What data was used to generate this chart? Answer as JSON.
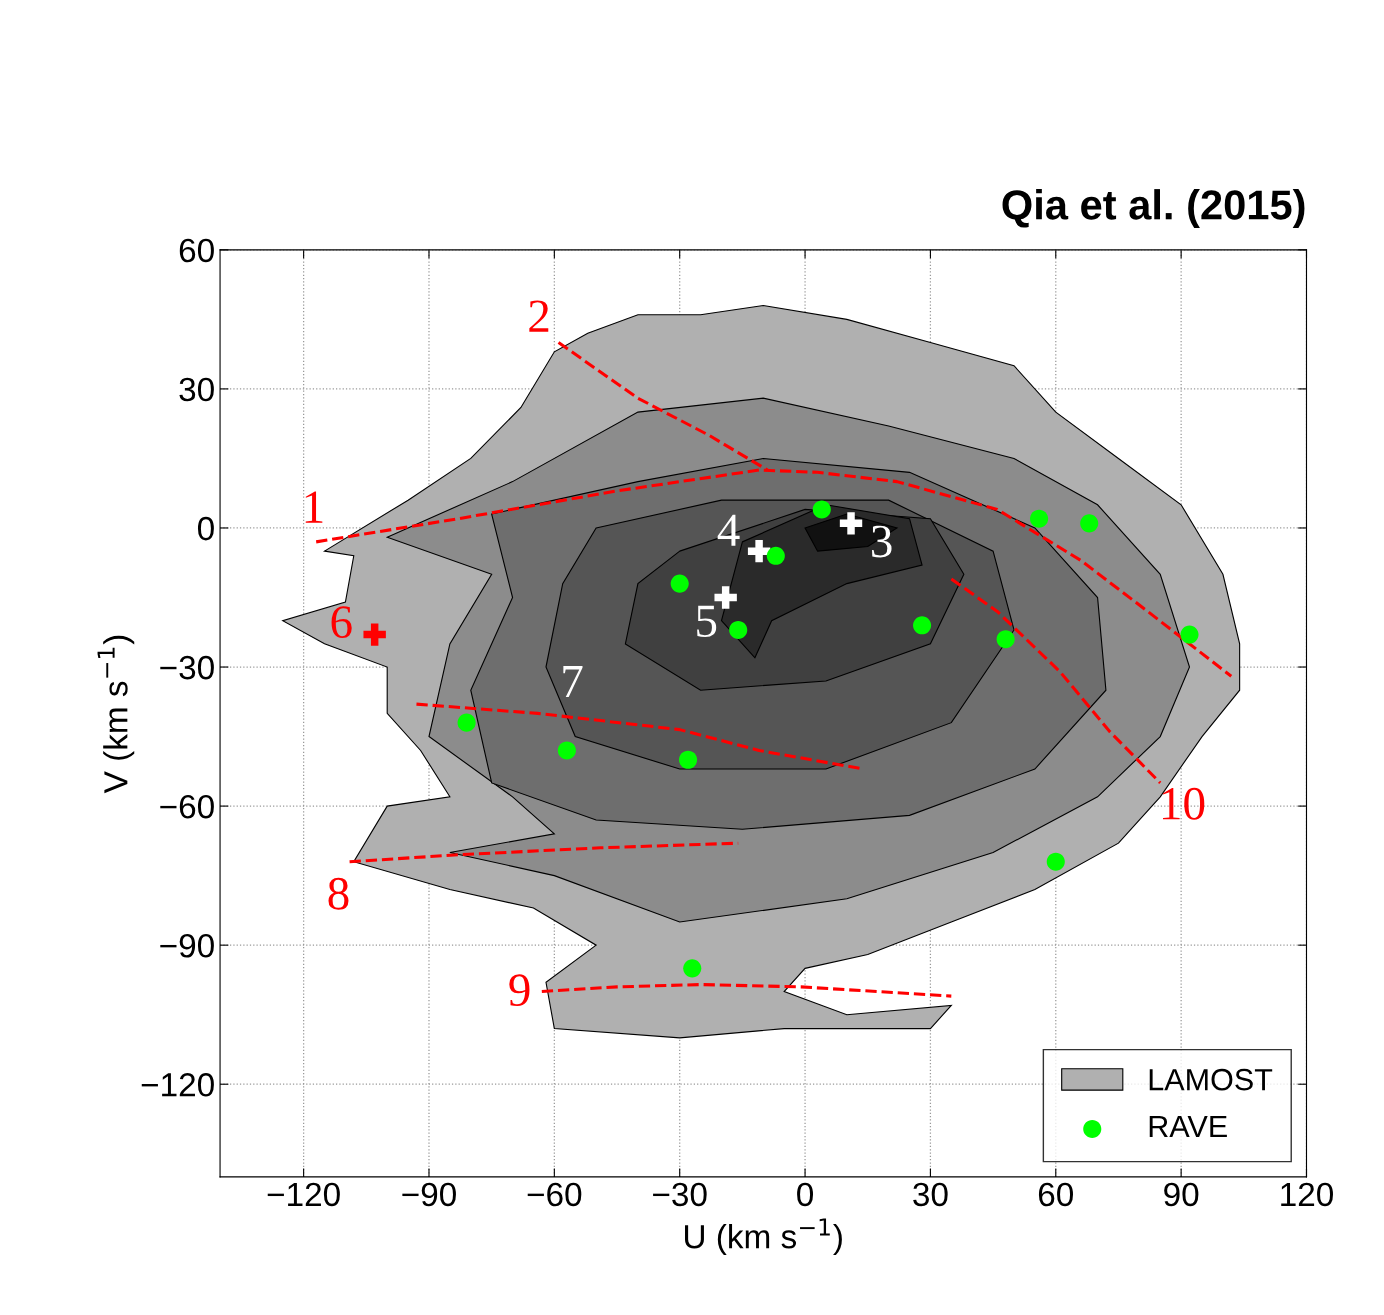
{
  "chart_data": {
    "type": "scatter",
    "title": "Qia et al. (2015)",
    "xlabel": "U (km s$^{−1}$)",
    "ylabel": "V (km s$^{−1}$)",
    "xlim": [
      -140,
      120
    ],
    "xticks": [
      {
        "value": -120,
        "label": "−120"
      },
      {
        "value": -90,
        "label": "−90"
      },
      {
        "value": -60,
        "label": "−60"
      },
      {
        "value": -30,
        "label": "−30"
      },
      0,
      30,
      60,
      90,
      120
    ],
    "ylim": [
      -140,
      60
    ],
    "yticks": [
      {
        "value": -120,
        "label": "−120"
      },
      {
        "value": -90,
        "label": "−90"
      },
      {
        "value": -60,
        "label": "−60"
      },
      {
        "value": -30,
        "label": "−30"
      },
      0,
      30,
      60
    ],
    "grid": true,
    "legend": "bottom right",
    "series": [
      {
        "type": "area",
        "name": "LAMOST",
        "color": "#b0b0b0",
        "x": [
          -115,
          -95,
          -80,
          -68,
          -60,
          -52,
          -40,
          -25,
          -10,
          10,
          30,
          50,
          60,
          75,
          90,
          100,
          104,
          104,
          95,
          85,
          75,
          55,
          35,
          15,
          0,
          -5,
          10,
          35,
          30,
          -5,
          -30,
          -60,
          -62,
          -50,
          -65,
          -85,
          -108,
          -100,
          -85,
          -92,
          -100,
          -100,
          -115,
          -125,
          -110,
          -108
        ],
        "values": [
          -5,
          6,
          15,
          26,
          38,
          42,
          46,
          46,
          48,
          45,
          40,
          35,
          25,
          15,
          5,
          -10,
          -25,
          -35,
          -45,
          -58,
          -68,
          -78,
          -85,
          -92,
          -95,
          -100,
          -105,
          -103,
          -108,
          -108,
          -110,
          -108,
          -98,
          -90,
          -82,
          -78,
          -72,
          -60,
          -58,
          -48,
          -40,
          -30,
          -25,
          -20,
          -16,
          -6
        ]
      },
      {
        "type": "area",
        "color": "#8c8c8c",
        "x": [
          -100,
          -70,
          -40,
          -10,
          20,
          50,
          70,
          85,
          92,
          85,
          70,
          45,
          10,
          -30,
          -60,
          -85,
          -60,
          -70,
          -90,
          -85,
          -75
        ],
        "values": [
          -2,
          10,
          25,
          28,
          22,
          15,
          5,
          -10,
          -30,
          -45,
          -58,
          -70,
          -80,
          -85,
          -75,
          -70,
          -66,
          -58,
          -45,
          -25,
          -10
        ]
      },
      {
        "type": "area",
        "color": "#6e6e6e",
        "x": [
          -75,
          -40,
          -10,
          25,
          55,
          70,
          72,
          55,
          25,
          -15,
          -50,
          -75,
          -80,
          -70
        ],
        "values": [
          3,
          10,
          15,
          12,
          0,
          -15,
          -35,
          -52,
          -62,
          -65,
          -63,
          -55,
          -35,
          -15
        ]
      },
      {
        "type": "area",
        "color": "#555555",
        "x": [
          -50,
          -20,
          20,
          45,
          50,
          35,
          5,
          -30,
          -55,
          -62,
          -58
        ],
        "values": [
          0,
          6,
          6,
          -5,
          -22,
          -42,
          -52,
          -52,
          -45,
          -30,
          -12
        ]
      },
      {
        "type": "area",
        "color": "#404040",
        "x": [
          -30,
          0,
          30,
          38,
          30,
          5,
          -25,
          -43,
          -40
        ],
        "values": [
          -5,
          4,
          2,
          -10,
          -25,
          -33,
          -35,
          -25,
          -12
        ]
      },
      {
        "type": "area",
        "color": "#2a2a2a",
        "x": [
          -15,
          5,
          25,
          28,
          10,
          -8,
          -12,
          -20
        ],
        "values": [
          -3,
          5,
          2,
          -8,
          -12,
          -20,
          -28,
          -20
        ]
      },
      {
        "type": "area",
        "color": "#111111",
        "x": [
          0,
          10,
          22,
          15,
          3
        ],
        "values": [
          0,
          3,
          0,
          -4,
          -5
        ]
      },
      {
        "type": "line",
        "name": "1",
        "color": "#ff0000",
        "line_style": "dashed",
        "marker": "none",
        "x": [
          -117,
          -83,
          -45,
          -11,
          3,
          22,
          46,
          66,
          82,
          102
        ],
        "values": [
          -3,
          2,
          8,
          12.5,
          12,
          10,
          4,
          -7,
          -18,
          -32
        ]
      },
      {
        "type": "line",
        "name": "2",
        "color": "#ff0000",
        "line_style": "dashed",
        "marker": "none",
        "x": [
          -59,
          -40,
          -23,
          -9
        ],
        "values": [
          40,
          28,
          20,
          12.5
        ]
      },
      {
        "type": "line",
        "name": "10",
        "color": "#ff0000",
        "line_style": "dashed",
        "marker": "none",
        "x": [
          35,
          46,
          61,
          73,
          85
        ],
        "values": [
          -11,
          -18,
          -31,
          -44,
          -55
        ]
      },
      {
        "type": "line",
        "color": "#ff0000",
        "line_style": "dashed",
        "marker": "none",
        "x": [
          -93,
          -64,
          -30,
          -11,
          14
        ],
        "values": [
          -38,
          -40,
          -43.5,
          -48,
          -52
        ]
      },
      {
        "type": "line",
        "name": "8",
        "color": "#ff0000",
        "line_style": "dashed",
        "marker": "none",
        "x": [
          -109,
          -83,
          -49,
          -16
        ],
        "values": [
          -72,
          -70.5,
          -69,
          -68
        ]
      },
      {
        "type": "line",
        "name": "9",
        "color": "#ff0000",
        "line_style": "dashed",
        "marker": "none",
        "x": [
          -63,
          -45,
          -25,
          -1,
          35
        ],
        "values": [
          -100,
          -99,
          -98.5,
          -99,
          -101
        ]
      },
      {
        "type": "scatter",
        "name": "3",
        "marker": "cross",
        "color": "#ffffff",
        "x": [
          11
        ],
        "values": [
          1
        ]
      },
      {
        "type": "scatter",
        "name": "4",
        "marker": "cross",
        "color": "#ffffff",
        "x": [
          -11
        ],
        "values": [
          -5
        ]
      },
      {
        "type": "scatter",
        "name": "5",
        "marker": "cross",
        "color": "#ffffff",
        "x": [
          -19
        ],
        "values": [
          -15
        ]
      },
      {
        "type": "scatter",
        "name": "6",
        "marker": "cross",
        "color": "#ff0000",
        "x": [
          -103
        ],
        "values": [
          -23
        ]
      },
      {
        "name": "RAVE",
        "marker": "circle",
        "color": "#00ff00",
        "x": [
          4,
          -7,
          -30,
          -16,
          28,
          56,
          68,
          48,
          92,
          -81,
          -57,
          -28,
          60,
          -27
        ],
        "values": [
          4,
          -6,
          -12,
          -22,
          -21,
          2,
          1,
          -24,
          -23,
          -42,
          -48,
          -50,
          -72,
          -95
        ]
      }
    ],
    "annotations": [
      "7"
    ]
  }
}
